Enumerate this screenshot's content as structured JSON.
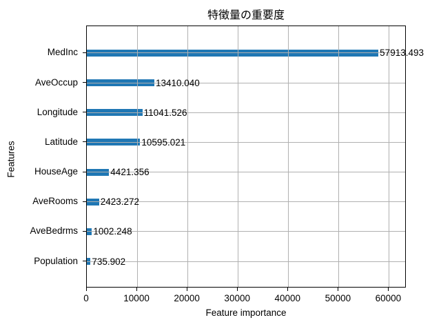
{
  "chart_data": {
    "type": "bar",
    "orientation": "horizontal",
    "title": "特徴量の重要度",
    "xlabel": "Feature importance",
    "ylabel": "Features",
    "categories": [
      "MedInc",
      "AveOccup",
      "Longitude",
      "Latitude",
      "HouseAge",
      "AveRooms",
      "AveBedrms",
      "Population"
    ],
    "values": [
      57913.493,
      13410.04,
      11041.526,
      10595.021,
      4421.356,
      2423.272,
      1002.248,
      735.902
    ],
    "value_labels": [
      "57913.493",
      "13410.040",
      "11041.526",
      "10595.021",
      "4421.356",
      "2423.272",
      "1002.248",
      "735.902"
    ],
    "xticks": [
      0,
      10000,
      20000,
      30000,
      40000,
      50000,
      60000
    ],
    "xtick_labels": [
      "0",
      "10000",
      "20000",
      "30000",
      "40000",
      "50000",
      "60000"
    ],
    "xlim": [
      0,
      63500
    ],
    "grid": true,
    "legend": false,
    "bar_color": "#1f77b4",
    "grid_color": "#b0b0b0",
    "spine_color": "#000000",
    "background_color": "#ffffff"
  }
}
